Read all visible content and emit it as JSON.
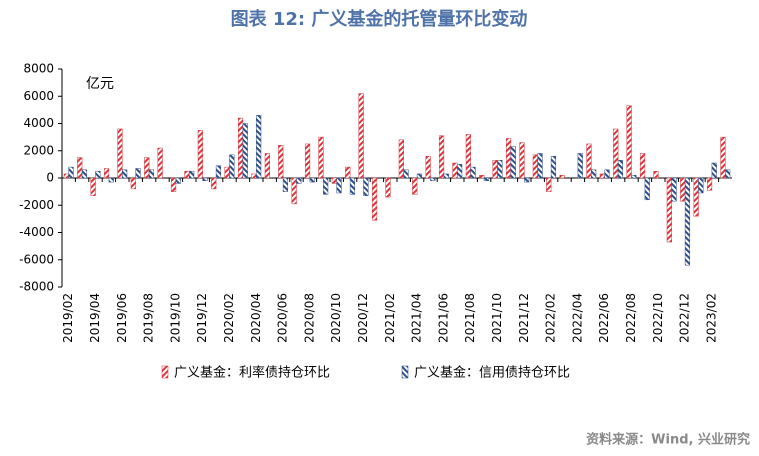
{
  "chart_data": {
    "type": "bar",
    "title": "图表 12: 广义基金的托管量环比变动",
    "y_label": "亿元",
    "source": "资料来源：Wind, 兴业研究",
    "categories": [
      "2019/02",
      null,
      "2019/04",
      null,
      "2019/06",
      null,
      "2019/08",
      null,
      "2019/10",
      null,
      "2019/12",
      null,
      "2020/02",
      null,
      "2020/04",
      null,
      "2020/06",
      null,
      "2020/08",
      null,
      "2020/10",
      null,
      "2020/12",
      null,
      "2021/02",
      null,
      "2021/04",
      null,
      "2021/06",
      null,
      "2021/08",
      null,
      "2021/10",
      null,
      "2021/12",
      null,
      "2022/02",
      null,
      "2022/04",
      null,
      "2022/06",
      null,
      "2022/08",
      null,
      "2022/10",
      null,
      "2022/12",
      null,
      "2023/02",
      null
    ],
    "series": [
      {
        "name": "广义基金：利率债持仓环比",
        "color": "#d9363e",
        "values": [
          300,
          1500,
          -1300,
          700,
          3600,
          -800,
          1500,
          2200,
          -1000,
          500,
          3500,
          -800,
          800,
          4400,
          300,
          1800,
          2400,
          -1900,
          2500,
          3000,
          -400,
          800,
          6200,
          -3100,
          -1400,
          2800,
          -1200,
          1600,
          3100,
          1100,
          3200,
          200,
          1300,
          2900,
          2600,
          1700,
          -1000,
          200,
          0,
          2500,
          300,
          3600,
          5300,
          1800,
          500,
          -4700,
          -1700,
          -2800,
          -900,
          3000
        ]
      },
      {
        "name": "广义基金：信用债持仓环比",
        "color": "#2e4f8a",
        "values": [
          800,
          600,
          500,
          -300,
          600,
          700,
          600,
          0,
          -400,
          500,
          -200,
          900,
          1700,
          4000,
          4600,
          0,
          -1000,
          -400,
          -300,
          -1200,
          -1100,
          -1200,
          -1300,
          0,
          0,
          600,
          300,
          -200,
          300,
          1000,
          800,
          -200,
          1300,
          2300,
          -300,
          1800,
          1600,
          0,
          1800,
          600,
          600,
          1300,
          200,
          -1600,
          0,
          -1700,
          -6400,
          -1100,
          1100,
          600
        ]
      }
    ],
    "ylim": [
      -8000,
      8000
    ],
    "yticks": [
      -8000,
      -6000,
      -4000,
      -2000,
      0,
      2000,
      4000,
      6000,
      8000
    ]
  }
}
